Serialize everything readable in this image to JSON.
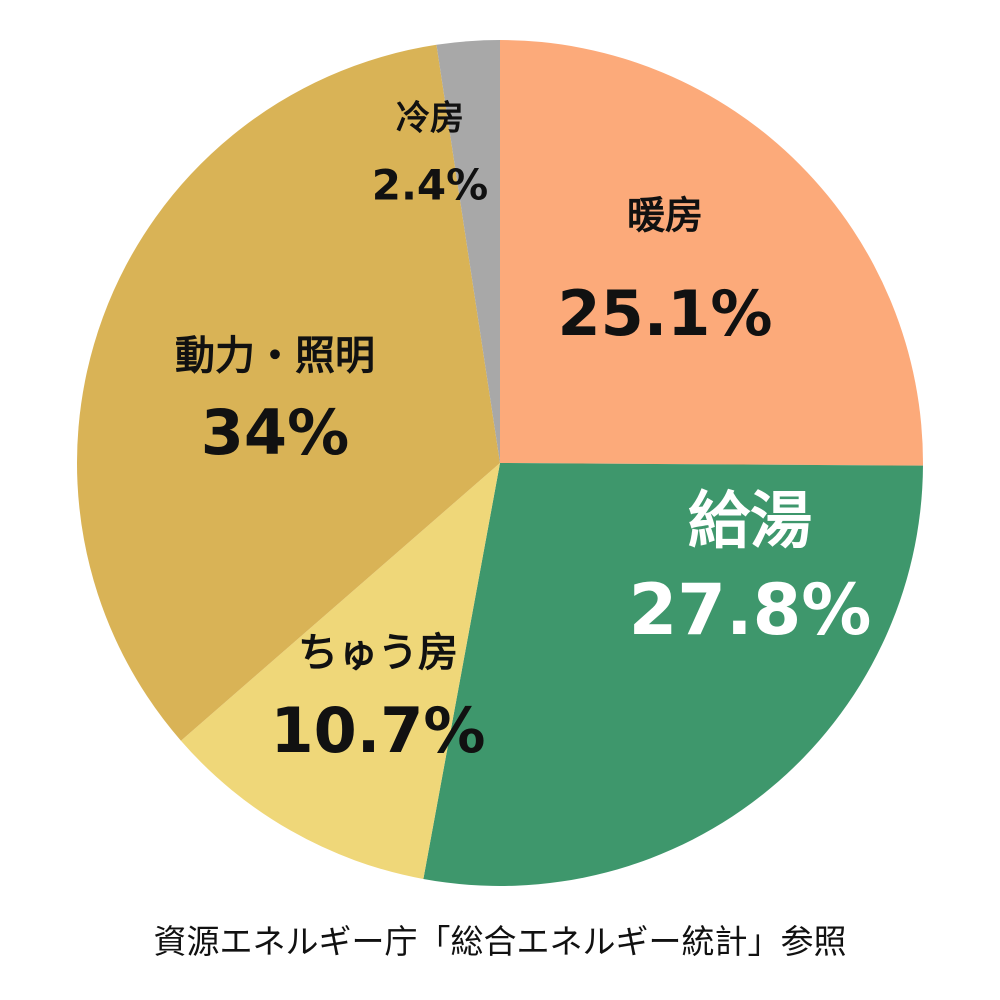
{
  "chart_data": {
    "type": "pie",
    "slices": [
      {
        "label": "暖房",
        "value": 25.1,
        "value_label": "25.1%",
        "color": "#FCAA7A",
        "text_color": "#111111"
      },
      {
        "label": "給湯",
        "value": 27.8,
        "value_label": "27.8%",
        "color": "#3E976C",
        "text_color": "#FFFFFF"
      },
      {
        "label": "ちゅう房",
        "value": 10.7,
        "value_label": "10.7%",
        "color": "#EFD779",
        "text_color": "#111111"
      },
      {
        "label": "動力・照明",
        "value": 34,
        "value_label": "34%",
        "color": "#D9B356",
        "text_color": "#111111"
      },
      {
        "label": "冷房",
        "value": 2.4,
        "value_label": "2.4%",
        "color": "#A8A8A8",
        "text_color": "#111111"
      }
    ],
    "start": "12 o'clock",
    "direction": "clockwise",
    "legend": "none"
  },
  "source_note": "資源エネルギー庁「総合エネルギー統計」参照"
}
